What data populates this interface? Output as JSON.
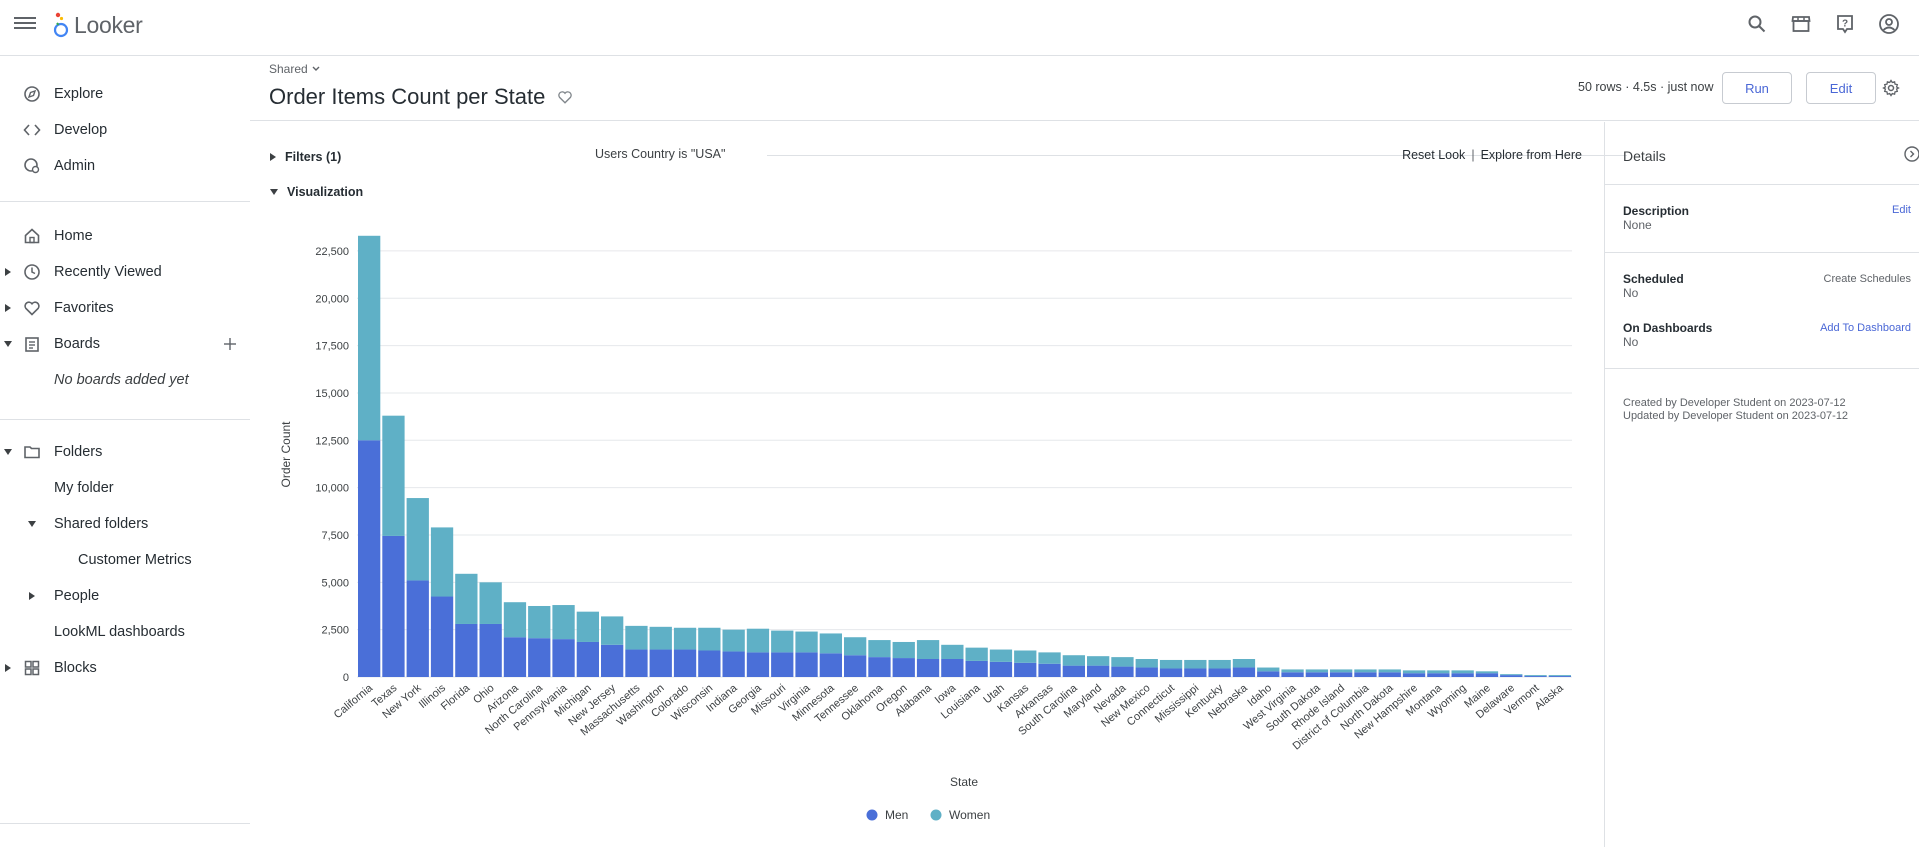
{
  "app": {
    "name": "Looker"
  },
  "nav": {
    "explore": "Explore",
    "develop": "Develop",
    "admin": "Admin",
    "home": "Home",
    "recently_viewed": "Recently Viewed",
    "favorites": "Favorites",
    "boards": "Boards",
    "no_boards": "No boards added yet",
    "folders": "Folders",
    "my_folder": "My folder",
    "shared_folders": "Shared folders",
    "customer_metrics": "Customer Metrics",
    "people": "People",
    "lookml_dashboards": "LookML dashboards",
    "blocks": "Blocks"
  },
  "header": {
    "breadcrumb": "Shared",
    "title": "Order Items Count per State",
    "status": "50 rows · 4.5s · just now",
    "run": "Run",
    "edit": "Edit"
  },
  "filters": {
    "toggle": "Filters (1)",
    "summary": "Users Country is \"USA\"",
    "reset": "Reset Look",
    "separator": "|",
    "explore_here": "Explore from Here"
  },
  "visualization": {
    "toggle": "Visualization"
  },
  "details": {
    "heading": "Details",
    "description_label": "Description",
    "description_value": "None",
    "description_edit": "Edit",
    "scheduled_label": "Scheduled",
    "scheduled_value": "No",
    "scheduled_link": "Create Schedules",
    "dashboards_label": "On Dashboards",
    "dashboards_value": "No",
    "dashboards_link": "Add To Dashboard",
    "created": "Created by Developer Student on 2023-07-12",
    "updated": "Updated by Developer Student on 2023-07-12"
  },
  "colors": {
    "men": "#4a6fd8",
    "women": "#5fb0c6",
    "accent": "#4a67d6"
  },
  "chart_data": {
    "type": "bar",
    "stacked": true,
    "xlabel": "State",
    "ylabel": "Order Count",
    "ylim": [
      0,
      23500
    ],
    "yticks": [
      0,
      2500,
      5000,
      7500,
      10000,
      12500,
      15000,
      17500,
      20000,
      22500
    ],
    "ytick_labels": [
      "0",
      "2,500",
      "5,000",
      "7,500",
      "10,000",
      "12,500",
      "15,000",
      "17,500",
      "20,000",
      "22,500"
    ],
    "grid": true,
    "legend": "bottom",
    "categories": [
      "California",
      "Texas",
      "New York",
      "Illinois",
      "Florida",
      "Ohio",
      "Arizona",
      "North Carolina",
      "Pennsylvania",
      "Michigan",
      "New Jersey",
      "Massachusetts",
      "Washington",
      "Colorado",
      "Wisconsin",
      "Indiana",
      "Georgia",
      "Missouri",
      "Virginia",
      "Minnesota",
      "Tennessee",
      "Oklahoma",
      "Oregon",
      "Alabama",
      "Iowa",
      "Louisiana",
      "Utah",
      "Kansas",
      "Arkansas",
      "South Carolina",
      "Maryland",
      "Nevada",
      "New Mexico",
      "Connecticut",
      "Mississippi",
      "Kentucky",
      "Nebraska",
      "Idaho",
      "West Virginia",
      "South Dakota",
      "Rhode Island",
      "District of Columbia",
      "North Dakota",
      "New Hampshire",
      "Montana",
      "Wyoming",
      "Maine",
      "Delaware",
      "Vermont",
      "Alaska"
    ],
    "series": [
      {
        "name": "Men",
        "values": [
          12500,
          7450,
          5100,
          4250,
          2800,
          2800,
          2100,
          2050,
          2000,
          1850,
          1700,
          1450,
          1450,
          1450,
          1400,
          1350,
          1300,
          1300,
          1300,
          1250,
          1150,
          1050,
          1000,
          950,
          950,
          850,
          800,
          750,
          700,
          600,
          600,
          550,
          500,
          450,
          450,
          450,
          500,
          300,
          250,
          250,
          250,
          250,
          250,
          200,
          200,
          200,
          200,
          100,
          50,
          50
        ]
      },
      {
        "name": "Women",
        "values": [
          10800,
          6350,
          4350,
          3650,
          2650,
          2200,
          1850,
          1700,
          1800,
          1600,
          1500,
          1250,
          1200,
          1150,
          1200,
          1150,
          1250,
          1150,
          1100,
          1050,
          950,
          900,
          850,
          1000,
          750,
          700,
          650,
          650,
          600,
          550,
          500,
          500,
          450,
          450,
          450,
          450,
          450,
          200,
          150,
          150,
          150,
          150,
          150,
          150,
          150,
          150,
          100,
          50,
          50,
          50
        ]
      }
    ]
  }
}
